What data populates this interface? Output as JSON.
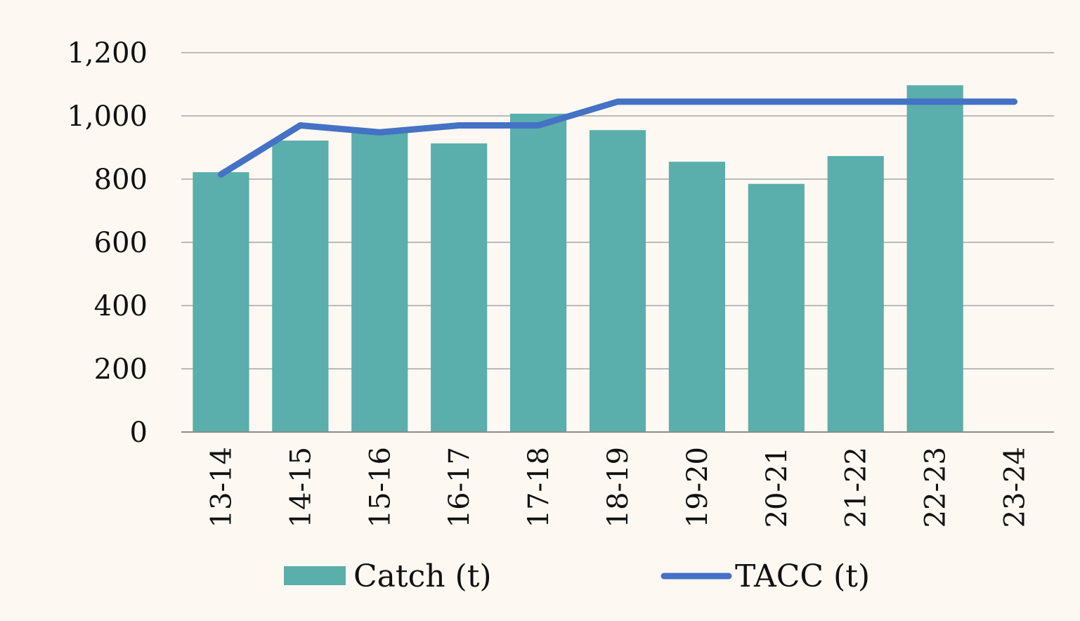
{
  "chart_data": {
    "type": "bar",
    "categories": [
      "13-14",
      "14-15",
      "15-16",
      "16-17",
      "17-18",
      "18-19",
      "19-20",
      "20-21",
      "21-22",
      "22-23",
      "23-24"
    ],
    "series": [
      {
        "name": "Catch (t)",
        "type": "bar",
        "color": "#5aaeac",
        "values": [
          822,
          922,
          950,
          913,
          1007,
          955,
          855,
          785,
          873,
          1097,
          null
        ]
      },
      {
        "name": "TACC (t)",
        "type": "line",
        "color": "#4472c4",
        "values": [
          815,
          970,
          948,
          970,
          970,
          1045,
          1045,
          1045,
          1045,
          1045,
          1045
        ]
      }
    ],
    "ylim": [
      0,
      1200
    ],
    "y_ticks": [
      "0",
      "200",
      "400",
      "600",
      "800",
      "1,000",
      "1,200"
    ],
    "grid": true,
    "legend": "bottom",
    "title": "",
    "xlabel": "",
    "ylabel": ""
  }
}
